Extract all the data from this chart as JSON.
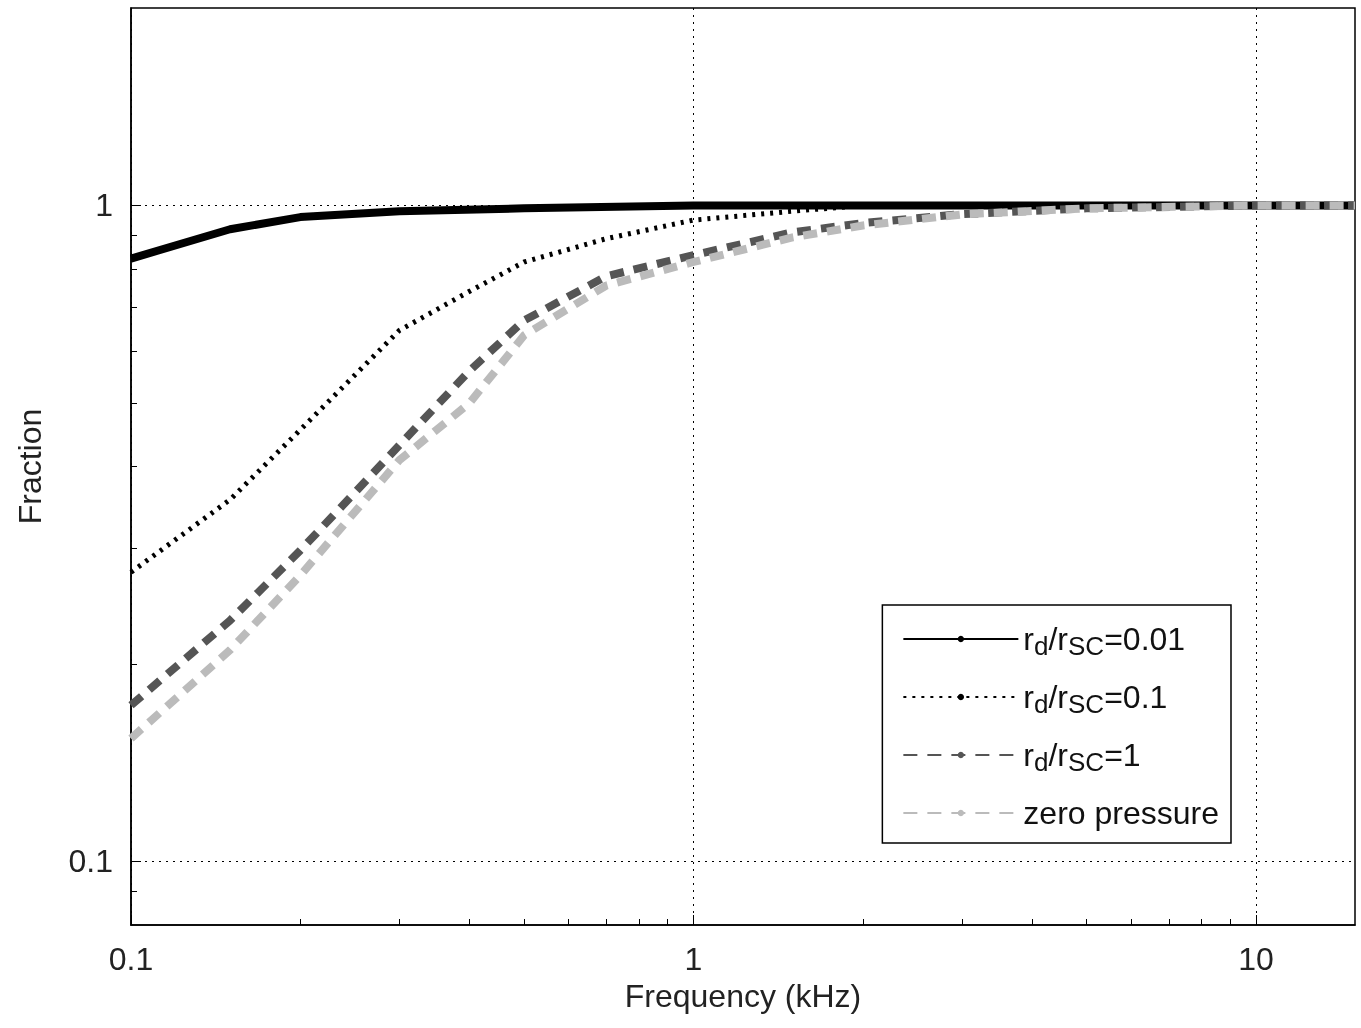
{
  "chart_data": {
    "type": "line",
    "xlabel": "Frequency (kHz)",
    "ylabel": "Fraction",
    "log": "xy",
    "xlim": [
      0.1,
      15
    ],
    "xticks": [
      0.1,
      1,
      10
    ],
    "ylim": [
      0.08,
      2
    ],
    "yticks": [
      0.1,
      1
    ],
    "grid": true,
    "legend": "bottom right",
    "marker": "none",
    "series": [
      {
        "name": "r$_{d}$/r$_{SC}$=0.01",
        "color": "#000000",
        "line_style": "solid",
        "x": [
          0.1,
          0.15,
          0.2,
          0.3,
          0.5,
          1,
          2,
          5,
          15
        ],
        "values": [
          0.83,
          0.92,
          0.96,
          0.98,
          0.99,
          1,
          1,
          1,
          1
        ]
      },
      {
        "name": "r$_{d}$/r$_{SC}$=0.1",
        "color": "#000000",
        "line_style": "dotted",
        "x": [
          0.1,
          0.15,
          0.2,
          0.3,
          0.4,
          0.5,
          0.7,
          1,
          1.5,
          2,
          5,
          15
        ],
        "values": [
          0.276,
          0.356,
          0.455,
          0.645,
          0.74,
          0.82,
          0.89,
          0.95,
          0.98,
          1,
          1,
          1
        ]
      },
      {
        "name": "r$_{d}$/r$_{SC}$=1",
        "color": "#555555",
        "line_style": "dashed",
        "x": [
          0.1,
          0.15,
          0.2,
          0.3,
          0.4,
          0.5,
          0.7,
          1,
          1.5,
          2,
          3,
          5,
          10,
          15
        ],
        "values": [
          0.173,
          0.233,
          0.298,
          0.431,
          0.56,
          0.668,
          0.78,
          0.84,
          0.91,
          0.94,
          0.97,
          0.99,
          1,
          1
        ]
      },
      {
        "name": "zero pressure",
        "color": "#bbbbbb",
        "line_style": "dashed",
        "x": [
          0.1,
          0.15,
          0.2,
          0.3,
          0.4,
          0.5,
          0.7,
          1,
          1.5,
          2,
          3,
          5,
          10,
          15
        ],
        "values": [
          0.154,
          0.21,
          0.273,
          0.409,
          0.5,
          0.634,
          0.755,
          0.82,
          0.894,
          0.932,
          0.969,
          0.99,
          1,
          1
        ]
      }
    ]
  }
}
